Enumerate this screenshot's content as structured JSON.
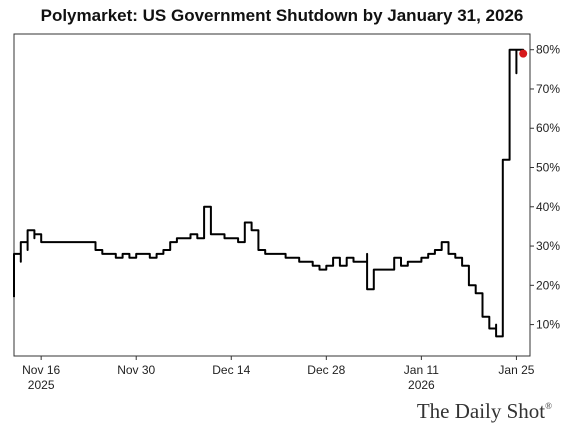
{
  "chart_data": {
    "type": "line",
    "title": "Polymarket: US Government Shutdown by January 31, 2026",
    "xlabel": "",
    "ylabel": "",
    "ylim": [
      2,
      84
    ],
    "y_ticks": [
      10,
      20,
      30,
      40,
      50,
      60,
      70,
      80
    ],
    "y_tick_labels": [
      "10%",
      "20%",
      "30%",
      "40%",
      "50%",
      "60%",
      "70%",
      "80%"
    ],
    "y_axis_position": "right",
    "grid": false,
    "x_axis_type": "date",
    "xlim": [
      "2025-11-12",
      "2026-01-27"
    ],
    "x_ticks": [
      {
        "date": "2025-11-16",
        "label": "Nov 16",
        "sublabel": "2025"
      },
      {
        "date": "2025-11-30",
        "label": "Nov 30",
        "sublabel": ""
      },
      {
        "date": "2025-12-14",
        "label": "Dec 14",
        "sublabel": ""
      },
      {
        "date": "2025-12-28",
        "label": "Dec 28",
        "sublabel": ""
      },
      {
        "date": "2026-01-11",
        "label": "Jan 11",
        "sublabel": "2026"
      },
      {
        "date": "2026-01-25",
        "label": "Jan 25",
        "sublabel": ""
      }
    ],
    "series": [
      {
        "color": "#000000",
        "last_point_color": "#d7191c",
        "x": [
          "2025-11-12",
          "2025-11-12",
          "2025-11-13",
          "2025-11-13",
          "2025-11-14",
          "2025-11-14",
          "2025-11-15",
          "2025-11-15",
          "2025-11-16",
          "2025-11-16",
          "2025-11-17",
          "2025-11-19",
          "2025-11-20",
          "2025-11-22",
          "2025-11-24",
          "2025-11-25",
          "2025-11-26",
          "2025-11-27",
          "2025-11-28",
          "2025-11-29",
          "2025-11-30",
          "2025-12-01",
          "2025-12-02",
          "2025-12-03",
          "2025-12-04",
          "2025-12-05",
          "2025-12-06",
          "2025-12-07",
          "2025-12-08",
          "2025-12-09",
          "2025-12-10",
          "2025-12-10",
          "2025-12-11",
          "2025-12-11",
          "2025-12-12",
          "2025-12-13",
          "2025-12-14",
          "2025-12-15",
          "2025-12-16",
          "2025-12-17",
          "2025-12-18",
          "2025-12-19",
          "2025-12-20",
          "2025-12-21",
          "2025-12-22",
          "2025-12-23",
          "2025-12-24",
          "2025-12-25",
          "2025-12-26",
          "2025-12-27",
          "2025-12-28",
          "2025-12-29",
          "2025-12-30",
          "2025-12-31",
          "2026-01-01",
          "2026-01-02",
          "2026-01-03",
          "2026-01-03",
          "2026-01-04",
          "2026-01-05",
          "2026-01-06",
          "2026-01-07",
          "2026-01-08",
          "2026-01-09",
          "2026-01-10",
          "2026-01-11",
          "2026-01-12",
          "2026-01-13",
          "2026-01-14",
          "2026-01-15",
          "2026-01-16",
          "2026-01-17",
          "2026-01-18",
          "2026-01-18",
          "2026-01-19",
          "2026-01-20",
          "2026-01-21",
          "2026-01-22",
          "2026-01-22",
          "2026-01-23",
          "2026-01-23",
          "2026-01-24",
          "2026-01-24",
          "2026-01-25",
          "2026-01-25",
          "2026-01-26"
        ],
        "y": [
          17,
          28,
          26,
          31,
          29,
          34,
          32,
          33,
          31,
          31,
          31,
          31,
          31,
          31,
          29,
          28,
          28,
          27,
          28,
          27,
          28,
          28,
          27,
          28,
          29,
          31,
          32,
          32,
          33,
          32,
          37,
          40,
          34,
          33,
          33,
          32,
          32,
          31,
          36,
          34,
          29,
          28,
          28,
          28,
          27,
          27,
          26,
          26,
          25,
          24,
          25,
          27,
          25,
          27,
          26,
          26,
          28,
          19,
          24,
          24,
          24,
          27,
          25,
          26,
          26,
          27,
          28,
          29,
          31,
          28,
          27,
          25,
          24,
          20,
          18,
          12,
          9,
          10,
          7,
          8,
          52,
          77,
          80,
          74,
          80,
          79
        ]
      }
    ]
  },
  "source": {
    "logo_text": "The Daily Shot",
    "logo_mark": "®"
  }
}
